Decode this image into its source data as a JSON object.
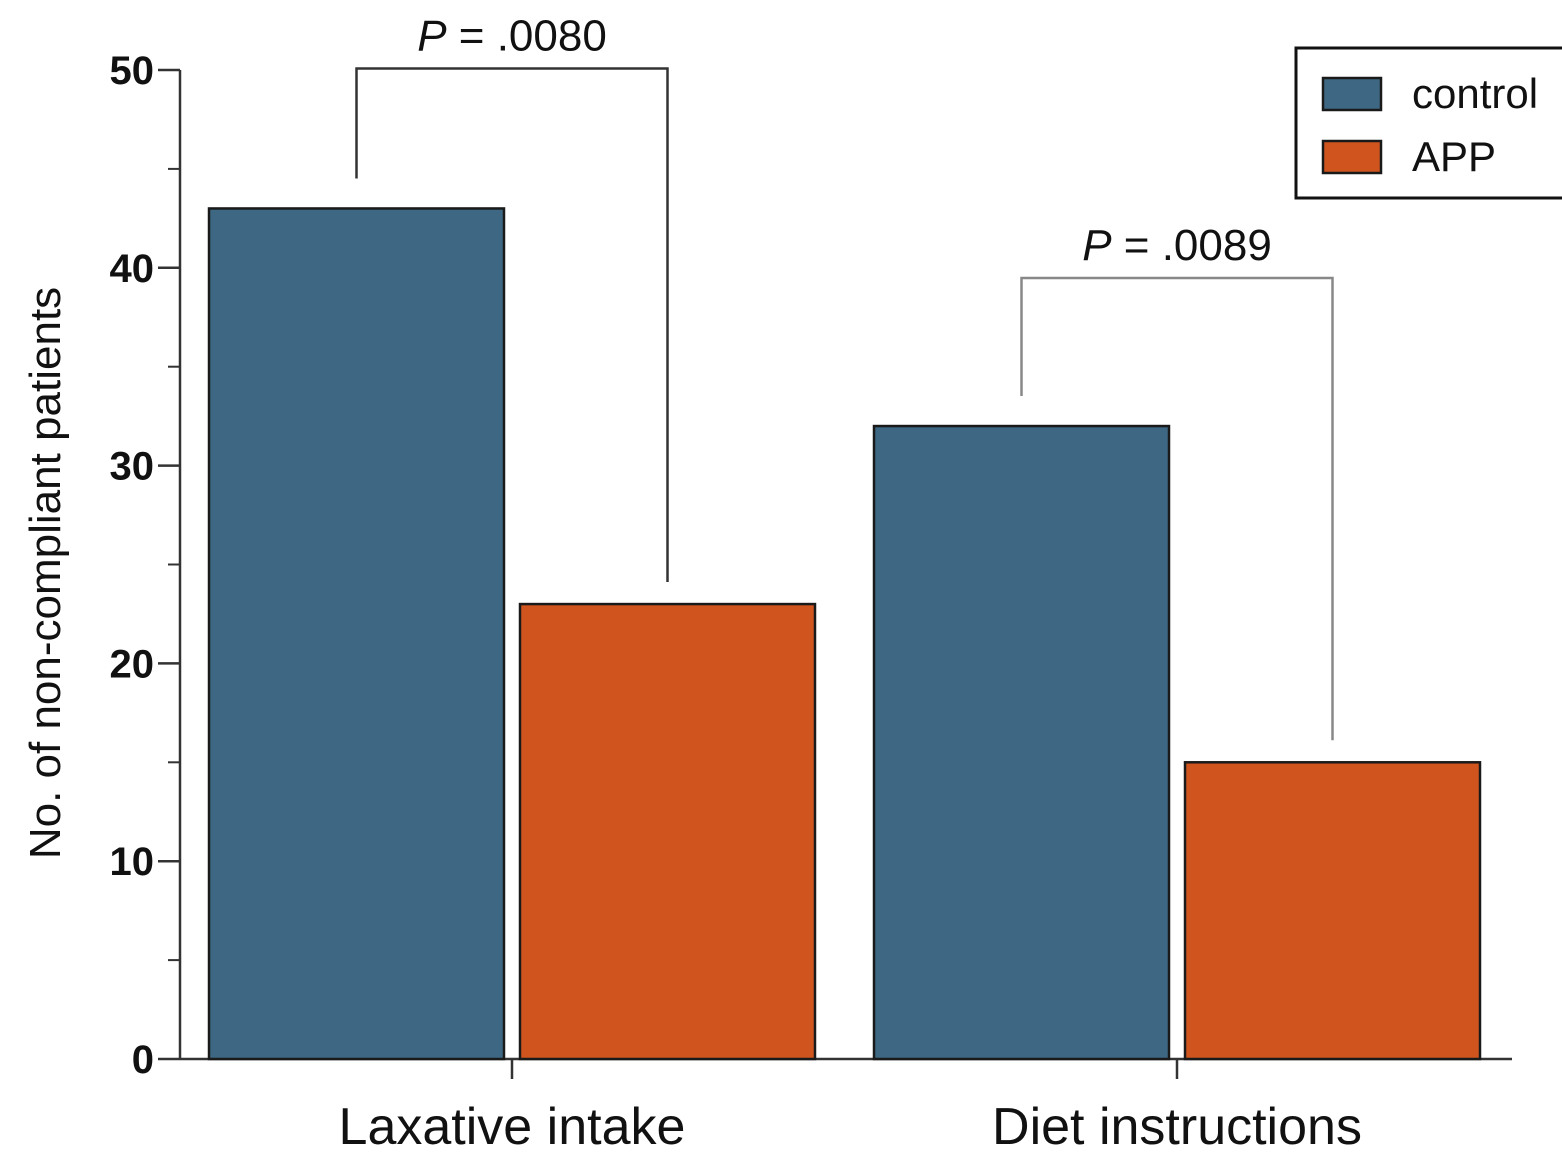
{
  "chart_data": {
    "type": "bar",
    "categories": [
      "Laxative intake",
      "Diet instructions"
    ],
    "series": [
      {
        "name": "control",
        "values": [
          43,
          32
        ],
        "color": "#3d6783"
      },
      {
        "name": "APP",
        "values": [
          23,
          15
        ],
        "color": "#d0541e"
      }
    ],
    "title": "",
    "xlabel": "",
    "ylabel": "No. of non-compliant patients",
    "ylim": [
      0,
      50
    ],
    "yticks": [
      0,
      10,
      20,
      30,
      40,
      50
    ],
    "grid": false,
    "legend_position": "top-right",
    "annotations": [
      {
        "category": "Laxative intake",
        "prefix": "P",
        "text": " = .0080"
      },
      {
        "category": "Diet instructions",
        "prefix": "P",
        "text": " = .0089"
      }
    ]
  }
}
